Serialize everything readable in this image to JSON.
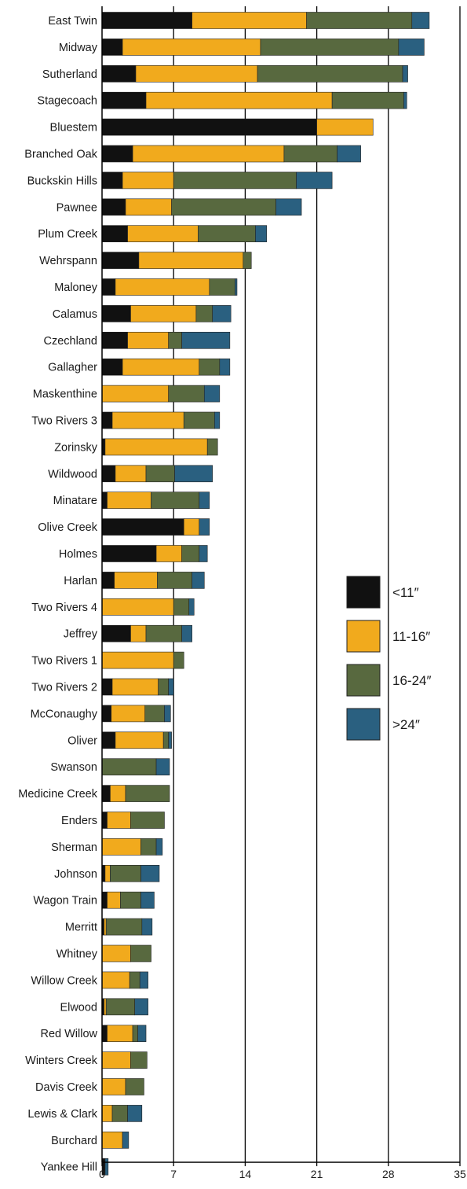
{
  "chart_data": {
    "type": "bar",
    "stacked": true,
    "orientation": "horizontal",
    "title": "",
    "xlabel": "",
    "ylabel": "",
    "xlim": [
      0,
      35
    ],
    "x_ticks": [
      0,
      7,
      14,
      21,
      28,
      35
    ],
    "grid": "vertical lines at major ticks",
    "legend_placement": "right",
    "categories": [
      "East Twin",
      "Midway",
      "Sutherland",
      "Stagecoach",
      "Bluestem",
      "Branched Oak",
      "Buckskin Hills",
      "Pawnee",
      "Plum Creek",
      "Wehrspann",
      "Maloney",
      "Calamus",
      "Czechland",
      "Gallagher",
      "Maskenthine",
      "Two Rivers 3",
      "Zorinsky",
      "Wildwood",
      "Minatare",
      "Olive Creek",
      "Holmes",
      "Harlan",
      "Two Rivers 4",
      "Jeffrey",
      "Two Rivers 1",
      "Two Rivers 2",
      "McConaughy",
      "Oliver",
      "Swanson",
      "Medicine Creek",
      "Enders",
      "Sherman",
      "Johnson",
      "Wagon Train",
      "Merritt",
      "Whitney",
      "Willow Creek",
      "Elwood",
      "Red Willow",
      "Winters Creek",
      "Davis Creek",
      "Lewis & Clark",
      "Burchard",
      "Yankee Hill"
    ],
    "series": [
      {
        "name": "<11″",
        "color": "#111111",
        "values": [
          8.8,
          2.0,
          3.3,
          4.3,
          21.0,
          3.0,
          2.0,
          2.3,
          2.5,
          3.6,
          1.3,
          2.8,
          2.5,
          2.0,
          0.0,
          1.0,
          0.3,
          1.3,
          0.5,
          8.0,
          5.3,
          1.2,
          0.0,
          2.8,
          0.0,
          1.0,
          0.9,
          1.3,
          0.0,
          0.8,
          0.5,
          0.0,
          0.3,
          0.5,
          0.2,
          0.0,
          0.0,
          0.2,
          0.5,
          0.0,
          0.0,
          0.0,
          0.0,
          0.3
        ]
      },
      {
        "name": "11-16″",
        "color": "#f1aa1d",
        "values": [
          11.2,
          13.5,
          11.9,
          18.2,
          5.5,
          14.8,
          5.0,
          4.5,
          6.9,
          10.2,
          9.2,
          6.4,
          4.0,
          7.5,
          6.5,
          7.0,
          10.0,
          3.0,
          4.3,
          1.5,
          2.5,
          4.2,
          7.0,
          1.5,
          7.0,
          4.5,
          3.3,
          4.7,
          0.0,
          1.5,
          2.3,
          3.8,
          0.5,
          1.3,
          0.2,
          2.8,
          2.7,
          0.2,
          2.5,
          2.8,
          2.3,
          1.0,
          2.0,
          0.0
        ]
      },
      {
        "name": "16-24″",
        "color": "#58693f",
        "values": [
          10.3,
          13.5,
          14.2,
          7.0,
          0.0,
          5.2,
          12.0,
          10.2,
          5.6,
          0.8,
          2.5,
          1.6,
          1.3,
          2.0,
          3.5,
          3.0,
          1.0,
          2.8,
          4.7,
          0.0,
          1.7,
          3.4,
          1.5,
          3.5,
          1.0,
          1.0,
          1.9,
          0.5,
          5.3,
          4.3,
          3.3,
          1.5,
          3.0,
          2.0,
          3.5,
          2.0,
          1.0,
          2.8,
          0.5,
          1.6,
          1.8,
          1.5,
          0.0,
          0.0
        ]
      },
      {
        "name": ">24″",
        "color": "#2a6080",
        "values": [
          1.7,
          2.5,
          0.5,
          0.3,
          0.0,
          2.3,
          3.5,
          2.5,
          1.1,
          0.0,
          0.2,
          1.8,
          4.7,
          1.0,
          1.5,
          0.5,
          0.0,
          3.7,
          1.0,
          1.0,
          0.8,
          1.2,
          0.5,
          1.0,
          0.0,
          0.5,
          0.6,
          0.3,
          1.3,
          0.0,
          0.0,
          0.6,
          1.8,
          1.3,
          1.0,
          0.0,
          0.8,
          1.3,
          0.8,
          0.0,
          0.0,
          1.4,
          0.6,
          0.3
        ]
      }
    ]
  }
}
